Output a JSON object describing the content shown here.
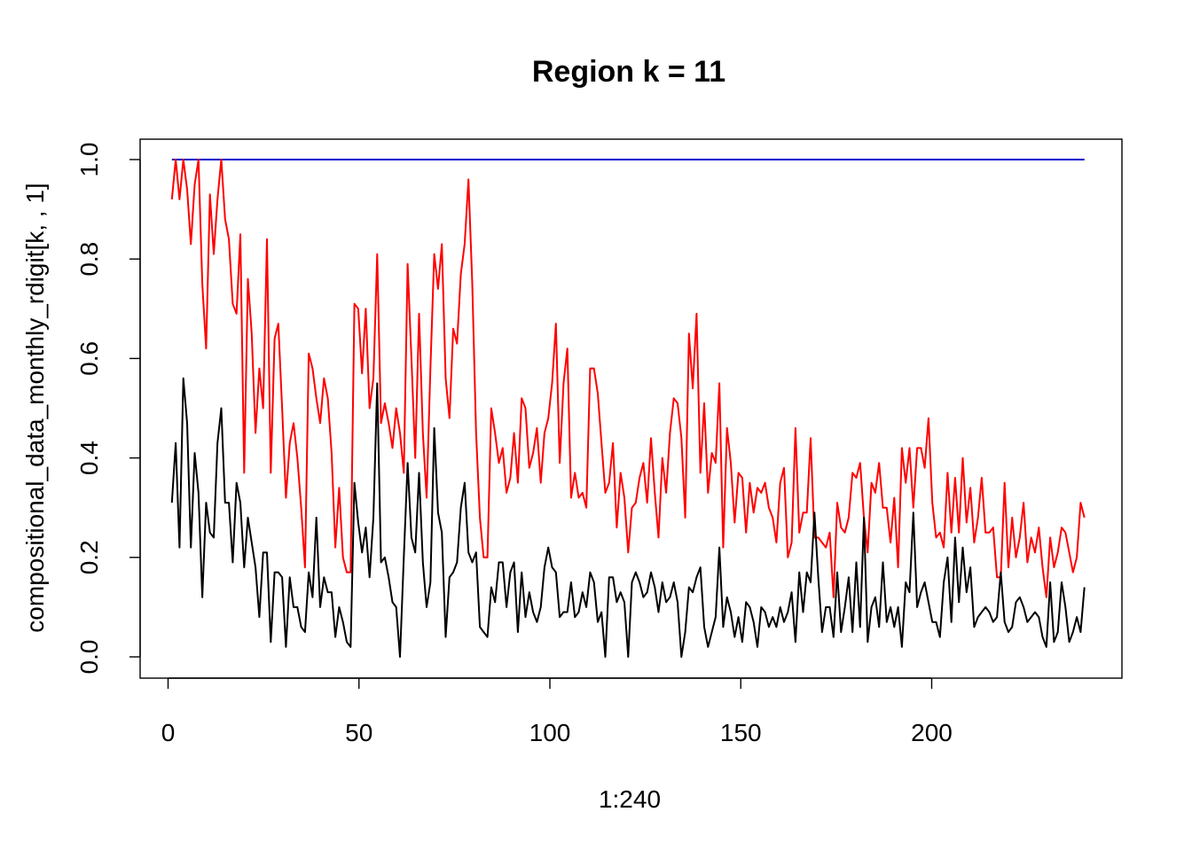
{
  "chart_data": {
    "type": "line",
    "title": "Region k = 11",
    "xlabel": "1:240",
    "ylabel": "compositional_data_monthly_rdigit[k, , 1]",
    "xlim": [
      1,
      240
    ],
    "ylim": [
      0.0,
      1.0
    ],
    "xticks": [
      0,
      50,
      100,
      150,
      200
    ],
    "yticks": [
      0.0,
      0.2,
      0.4,
      0.6,
      0.8,
      1.0
    ],
    "xtick_labels": [
      "0",
      "50",
      "100",
      "150",
      "200"
    ],
    "ytick_labels": [
      "0.0",
      "0.2",
      "0.4",
      "0.6",
      "0.8",
      "1.0"
    ],
    "grid": false,
    "series": [
      {
        "color": "#0000cc",
        "x_start": 1,
        "values": [
          1.0,
          1.0
        ]
      },
      {
        "color": "#ff0000",
        "x_start": 1,
        "values": [
          0.92,
          1.0,
          0.92,
          1.0,
          0.94,
          0.83,
          0.95,
          1.0,
          0.75,
          0.62,
          0.93,
          0.81,
          0.92,
          1.0,
          0.88,
          0.84,
          0.71,
          0.69,
          0.85,
          0.37,
          0.76,
          0.65,
          0.45,
          0.58,
          0.5,
          0.84,
          0.37,
          0.64,
          0.67,
          0.5,
          0.32,
          0.43,
          0.47,
          0.4,
          0.3,
          0.18,
          0.61,
          0.58,
          0.52,
          0.47,
          0.56,
          0.52,
          0.41,
          0.22,
          0.34,
          0.2,
          0.17,
          0.17,
          0.71,
          0.7,
          0.57,
          0.7,
          0.5,
          0.56,
          0.81,
          0.47,
          0.51,
          0.47,
          0.42,
          0.5,
          0.45,
          0.37,
          0.79,
          0.6,
          0.4,
          0.69,
          0.45,
          0.32,
          0.58,
          0.81,
          0.74,
          0.83,
          0.56,
          0.48,
          0.66,
          0.63,
          0.77,
          0.83,
          0.96,
          0.75,
          0.45,
          0.28,
          0.2,
          0.2,
          0.5,
          0.45,
          0.39,
          0.42,
          0.33,
          0.36,
          0.45,
          0.35,
          0.52,
          0.5,
          0.38,
          0.41,
          0.46,
          0.35,
          0.45,
          0.48,
          0.55,
          0.67,
          0.39,
          0.55,
          0.62,
          0.32,
          0.37,
          0.32,
          0.33,
          0.3,
          0.58,
          0.58,
          0.53,
          0.43,
          0.33,
          0.35,
          0.43,
          0.26,
          0.37,
          0.32,
          0.21,
          0.3,
          0.31,
          0.36,
          0.39,
          0.31,
          0.44,
          0.33,
          0.24,
          0.4,
          0.33,
          0.45,
          0.52,
          0.51,
          0.44,
          0.28,
          0.65,
          0.54,
          0.69,
          0.37,
          0.51,
          0.33,
          0.41,
          0.39,
          0.55,
          0.22,
          0.46,
          0.39,
          0.27,
          0.37,
          0.36,
          0.25,
          0.35,
          0.29,
          0.34,
          0.33,
          0.35,
          0.3,
          0.28,
          0.23,
          0.35,
          0.38,
          0.2,
          0.23,
          0.46,
          0.25,
          0.29,
          0.29,
          0.44,
          0.24,
          0.24,
          0.23,
          0.22,
          0.25,
          0.12,
          0.31,
          0.26,
          0.25,
          0.28,
          0.37,
          0.36,
          0.39,
          0.28,
          0.21,
          0.35,
          0.33,
          0.39,
          0.3,
          0.3,
          0.23,
          0.32,
          0.18,
          0.42,
          0.35,
          0.42,
          0.3,
          0.42,
          0.42,
          0.38,
          0.48,
          0.31,
          0.24,
          0.25,
          0.22,
          0.37,
          0.25,
          0.36,
          0.25,
          0.4,
          0.27,
          0.34,
          0.23,
          0.28,
          0.36,
          0.25,
          0.25,
          0.26,
          0.16,
          0.16,
          0.35,
          0.18,
          0.28,
          0.2,
          0.24,
          0.31,
          0.19,
          0.24,
          0.21,
          0.26,
          0.18,
          0.12,
          0.24,
          0.18,
          0.21,
          0.26,
          0.25,
          0.21,
          0.17,
          0.2,
          0.31,
          0.28
        ]
      },
      {
        "color": "#000000",
        "x_start": 1,
        "values": [
          0.31,
          0.43,
          0.22,
          0.56,
          0.47,
          0.22,
          0.41,
          0.33,
          0.12,
          0.31,
          0.25,
          0.24,
          0.43,
          0.5,
          0.31,
          0.31,
          0.19,
          0.35,
          0.31,
          0.18,
          0.28,
          0.23,
          0.18,
          0.08,
          0.21,
          0.21,
          0.03,
          0.17,
          0.17,
          0.16,
          0.02,
          0.16,
          0.1,
          0.1,
          0.06,
          0.05,
          0.17,
          0.12,
          0.28,
          0.1,
          0.16,
          0.13,
          0.13,
          0.04,
          0.1,
          0.07,
          0.03,
          0.02,
          0.35,
          0.27,
          0.21,
          0.26,
          0.16,
          0.28,
          0.55,
          0.19,
          0.2,
          0.16,
          0.11,
          0.1,
          0.0,
          0.2,
          0.39,
          0.24,
          0.21,
          0.37,
          0.19,
          0.1,
          0.15,
          0.46,
          0.29,
          0.25,
          0.04,
          0.16,
          0.17,
          0.19,
          0.3,
          0.35,
          0.21,
          0.19,
          0.21,
          0.06,
          0.05,
          0.04,
          0.14,
          0.11,
          0.19,
          0.19,
          0.1,
          0.17,
          0.19,
          0.05,
          0.17,
          0.08,
          0.13,
          0.09,
          0.07,
          0.1,
          0.18,
          0.22,
          0.18,
          0.17,
          0.08,
          0.09,
          0.09,
          0.15,
          0.08,
          0.09,
          0.13,
          0.1,
          0.17,
          0.15,
          0.07,
          0.09,
          0.0,
          0.16,
          0.16,
          0.11,
          0.13,
          0.11,
          0.0,
          0.15,
          0.17,
          0.15,
          0.12,
          0.13,
          0.17,
          0.14,
          0.09,
          0.15,
          0.11,
          0.12,
          0.15,
          0.11,
          0.0,
          0.05,
          0.14,
          0.13,
          0.16,
          0.18,
          0.06,
          0.02,
          0.05,
          0.08,
          0.22,
          0.06,
          0.12,
          0.09,
          0.04,
          0.08,
          0.03,
          0.11,
          0.1,
          0.07,
          0.02,
          0.1,
          0.09,
          0.06,
          0.08,
          0.06,
          0.1,
          0.07,
          0.09,
          0.13,
          0.03,
          0.17,
          0.09,
          0.17,
          0.15,
          0.29,
          0.16,
          0.05,
          0.1,
          0.1,
          0.04,
          0.17,
          0.05,
          0.1,
          0.16,
          0.05,
          0.19,
          0.06,
          0.28,
          0.03,
          0.1,
          0.12,
          0.06,
          0.19,
          0.07,
          0.1,
          0.06,
          0.1,
          0.02,
          0.15,
          0.13,
          0.29,
          0.1,
          0.13,
          0.15,
          0.11,
          0.07,
          0.07,
          0.04,
          0.15,
          0.2,
          0.07,
          0.24,
          0.11,
          0.22,
          0.13,
          0.18,
          0.06,
          0.08,
          0.09,
          0.1,
          0.09,
          0.07,
          0.08,
          0.17,
          0.07,
          0.05,
          0.06,
          0.11,
          0.12,
          0.1,
          0.07,
          0.08,
          0.09,
          0.08,
          0.04,
          0.02,
          0.15,
          0.03,
          0.05,
          0.15,
          0.1,
          0.03,
          0.05,
          0.08,
          0.05,
          0.14
        ]
      }
    ]
  }
}
